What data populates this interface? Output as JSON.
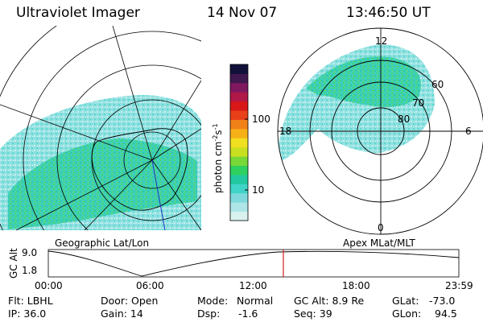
{
  "header": {
    "instrument": "Ultraviolet Imager",
    "date": "14 Nov 07",
    "time": "13:46:50 UT"
  },
  "geo_panel": {
    "label": "Geographic Lat/Lon"
  },
  "mag_panel": {
    "label": "Apex MLat/MLT",
    "mlt_labels": {
      "top": "12",
      "left": "18",
      "right": "6",
      "bottom": "0"
    },
    "lat_rings": [
      "60",
      "70",
      "80"
    ]
  },
  "colorbar": {
    "unit_text": "photon cm",
    "unit_exp1": "-2",
    "unit_mid": "s",
    "unit_exp2": "-1",
    "ticks": [
      "100",
      "10"
    ],
    "scale": "log",
    "colors": [
      "#d9f2f0",
      "#aee6e8",
      "#7fd9dc",
      "#40d4c8",
      "#22c8a0",
      "#2ed060",
      "#78d838",
      "#c8e020",
      "#f0e020",
      "#f8b018",
      "#f08018",
      "#e84018",
      "#d81818",
      "#b01848",
      "#801860",
      "#401850",
      "#10103a"
    ]
  },
  "altitude_plot": {
    "ylabel": "GC Alt",
    "ytick_top": "9.0",
    "ytick_bottom": "1.8",
    "xticks": [
      "00:00",
      "06:00",
      "12:00",
      "18:00",
      "23:59"
    ],
    "current_time_marker_color": "#d02020"
  },
  "info": {
    "flt": "Flt: LBHL",
    "ip": "IP: 36.0",
    "door": "Door: Open",
    "gain": "Gain: 14",
    "mode_label": "Mode:",
    "mode_value": "Normal",
    "dsp_label": "Dsp:",
    "dsp_value": "-1.6",
    "gc_alt": "GC Alt: 8.9 Re",
    "seq": "Seq: 39",
    "glat_label": "GLat:",
    "glat_value": "-73.0",
    "glon_label": "GLon:",
    "glon_value": "94.5"
  }
}
